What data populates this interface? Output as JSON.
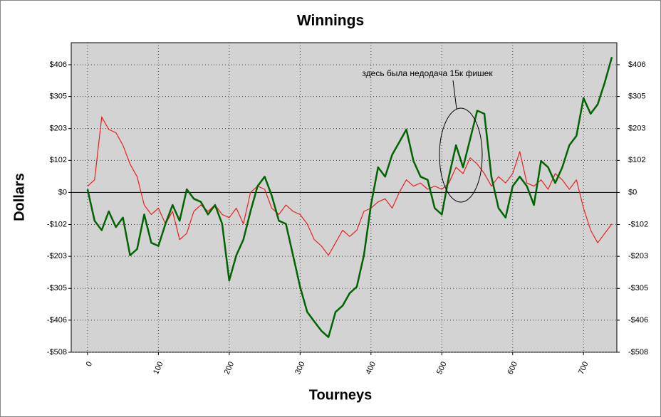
{
  "chart_data": {
    "type": "line",
    "title": "Winnings",
    "xlabel": "Tourneys",
    "ylabel": "Dollars",
    "annotation": "здесь была недодача 15к фишек",
    "x": [
      0,
      10,
      20,
      30,
      40,
      50,
      60,
      70,
      80,
      90,
      100,
      110,
      120,
      130,
      140,
      150,
      160,
      170,
      180,
      190,
      200,
      210,
      220,
      230,
      240,
      250,
      260,
      270,
      280,
      290,
      300,
      310,
      320,
      330,
      340,
      350,
      360,
      370,
      380,
      390,
      400,
      410,
      420,
      430,
      440,
      450,
      460,
      470,
      480,
      490,
      500,
      510,
      520,
      530,
      540,
      550,
      560,
      570,
      580,
      590,
      600,
      610,
      620,
      630,
      640,
      650,
      660,
      670,
      680,
      690,
      700,
      710,
      720,
      730,
      740
    ],
    "series": [
      {
        "color": "#006400",
        "values": [
          10,
          -90,
          -120,
          -60,
          -110,
          -80,
          -200,
          -180,
          -70,
          -160,
          -170,
          -100,
          -40,
          -90,
          10,
          -20,
          -30,
          -70,
          -40,
          -100,
          -280,
          -200,
          -150,
          -60,
          20,
          50,
          -10,
          -90,
          -100,
          -200,
          -300,
          -380,
          -410,
          -440,
          -460,
          -380,
          -360,
          -320,
          -300,
          -200,
          -40,
          80,
          50,
          120,
          160,
          200,
          100,
          50,
          40,
          -50,
          -70,
          50,
          150,
          80,
          170,
          260,
          250,
          50,
          -50,
          -80,
          20,
          50,
          20,
          -40,
          100,
          80,
          30,
          80,
          150,
          180,
          300,
          250,
          280,
          350,
          430
        ]
      },
      {
        "color": "#e82020",
        "values": [
          20,
          40,
          240,
          200,
          190,
          150,
          90,
          50,
          -40,
          -70,
          -50,
          -100,
          -60,
          -150,
          -130,
          -60,
          -40,
          -60,
          -40,
          -70,
          -80,
          -50,
          -100,
          0,
          20,
          10,
          -50,
          -70,
          -40,
          -60,
          -70,
          -100,
          -150,
          -170,
          -200,
          -160,
          -120,
          -140,
          -120,
          -60,
          -50,
          -30,
          -20,
          -50,
          0,
          40,
          20,
          30,
          10,
          20,
          10,
          30,
          80,
          60,
          110,
          90,
          60,
          20,
          50,
          30,
          60,
          130,
          30,
          20,
          40,
          10,
          60,
          40,
          10,
          40,
          -50,
          -120,
          -160,
          -130,
          -100
        ]
      }
    ],
    "xlim": [
      -23,
      747
    ],
    "ylim": [
      -508,
      476
    ],
    "y2lim": [
      -508,
      476
    ],
    "xticks": [
      0,
      100,
      200,
      300,
      400,
      500,
      600,
      700
    ],
    "yticks": [
      {
        "value": -508,
        "label": "-$508"
      },
      {
        "value": -406,
        "label": "-$406"
      },
      {
        "value": -305,
        "label": "-$305"
      },
      {
        "value": -203,
        "label": "-$203"
      },
      {
        "value": -102,
        "label": "-$102"
      },
      {
        "value": 0,
        "label": "$0"
      },
      {
        "value": 102,
        "label": "$102"
      },
      {
        "value": 203,
        "label": "$203"
      },
      {
        "value": 305,
        "label": "$305"
      },
      {
        "value": 406,
        "label": "$406"
      }
    ],
    "y2ticks": [
      {
        "value": -508,
        "label": "-$508"
      },
      {
        "value": -406,
        "label": "-$406"
      },
      {
        "value": -305,
        "label": "-$305"
      },
      {
        "value": -203,
        "label": "-$203"
      },
      {
        "value": -102,
        "label": "-$102"
      },
      {
        "value": 0,
        "label": "$0"
      },
      {
        "value": 102,
        "label": "$102"
      },
      {
        "value": 203,
        "label": "$203"
      },
      {
        "value": 305,
        "label": "$305"
      },
      {
        "value": 406,
        "label": "$406"
      }
    ],
    "grid": true
  }
}
